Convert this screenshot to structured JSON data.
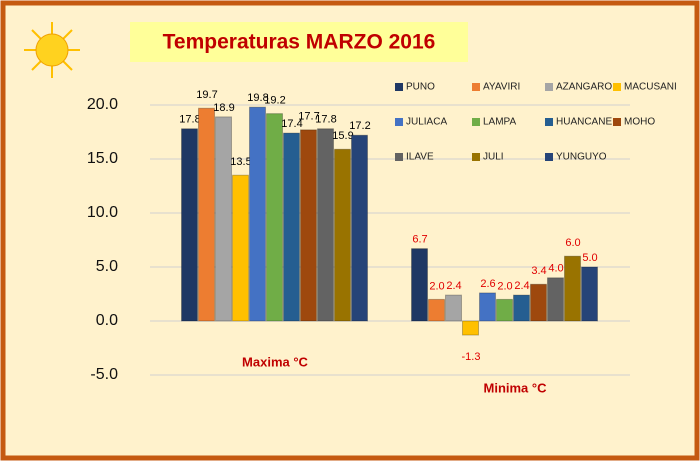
{
  "chart_data": {
    "type": "bar",
    "title": "Temperaturas MARZO 2016",
    "categories": [
      "Maxima °C",
      "Minima °C"
    ],
    "series": [
      {
        "name": "PUNO",
        "color": "#1f3864",
        "values": [
          17.8,
          6.7
        ],
        "value_labels": [
          "17.8",
          "6.7"
        ]
      },
      {
        "name": "AYAVIRI",
        "color": "#ed7d31",
        "values": [
          19.7,
          2.0
        ],
        "value_labels": [
          "19.7",
          "2.0"
        ]
      },
      {
        "name": "AZANGARO",
        "color": "#a5a5a5",
        "values": [
          18.9,
          2.4
        ],
        "value_labels": [
          "18.9",
          "2.4"
        ]
      },
      {
        "name": "MACUSANI",
        "color": "#ffc000",
        "values": [
          13.5,
          -1.3
        ],
        "value_labels": [
          "13.5",
          "-1.3"
        ]
      },
      {
        "name": "JULIACA",
        "color": "#4472c4",
        "values": [
          19.8,
          2.6
        ],
        "value_labels": [
          "19.8",
          "2.6"
        ]
      },
      {
        "name": "LAMPA",
        "color": "#70ad47",
        "values": [
          19.2,
          2.0
        ],
        "value_labels": [
          "19.2",
          "2.0"
        ]
      },
      {
        "name": "HUANCANE",
        "color": "#255e91",
        "values": [
          17.4,
          2.4
        ],
        "value_labels": [
          "17.4",
          "2.4"
        ]
      },
      {
        "name": "MOHO",
        "color": "#9e480e",
        "values": [
          17.7,
          3.4
        ],
        "value_labels": [
          "17.7",
          "3.4"
        ]
      },
      {
        "name": "ILAVE",
        "color": "#636363",
        "values": [
          17.8,
          4.0
        ],
        "value_labels": [
          "17.8",
          "4.0"
        ]
      },
      {
        "name": "JULI",
        "color": "#997300",
        "values": [
          15.9,
          6.0
        ],
        "value_labels": [
          "15.9",
          "6.0"
        ]
      },
      {
        "name": "YUNGUYO",
        "color": "#264478",
        "values": [
          17.2,
          5.0
        ],
        "value_labels": [
          "17.2",
          "5.0"
        ]
      }
    ],
    "ylim": [
      -5,
      20
    ],
    "yticks": [
      {
        "value": -5,
        "label": "-5.0"
      },
      {
        "value": 0,
        "label": "0.0"
      },
      {
        "value": 5,
        "label": "5.0"
      },
      {
        "value": 10,
        "label": "10.0"
      },
      {
        "value": 15,
        "label": "15.0"
      },
      {
        "value": 20,
        "label": "20.0"
      }
    ],
    "grid": true
  }
}
